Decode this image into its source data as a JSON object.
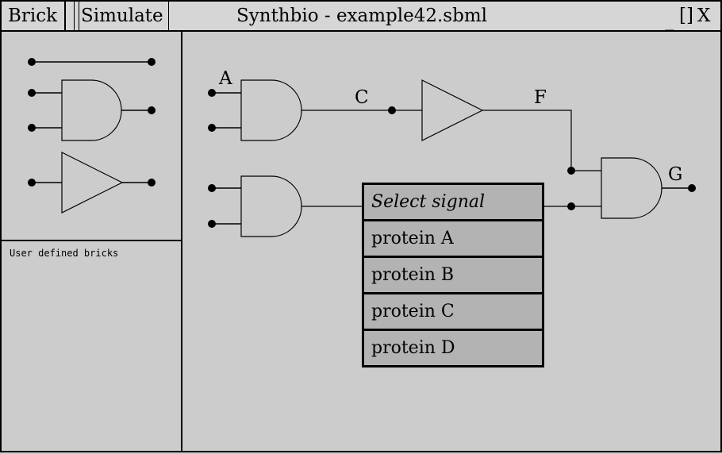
{
  "menu": {
    "brick_label": "Brick",
    "simulate_label": "Simulate"
  },
  "window": {
    "title": "Synthbio - example42.sbml",
    "minimize_label": "_",
    "maximize_label": "[]",
    "close_label": "X"
  },
  "sidebar": {
    "bricks": [
      "wire-icon",
      "and-gate-icon",
      "not-gate-icon"
    ],
    "user_defined_label": "User defined bricks"
  },
  "canvas": {
    "signals": {
      "a": "A",
      "c": "C",
      "f": "F",
      "g": "G"
    }
  },
  "dropdown": {
    "header": "Select signal",
    "options": [
      "protein A",
      "protein B",
      "protein C",
      "protein D"
    ]
  }
}
